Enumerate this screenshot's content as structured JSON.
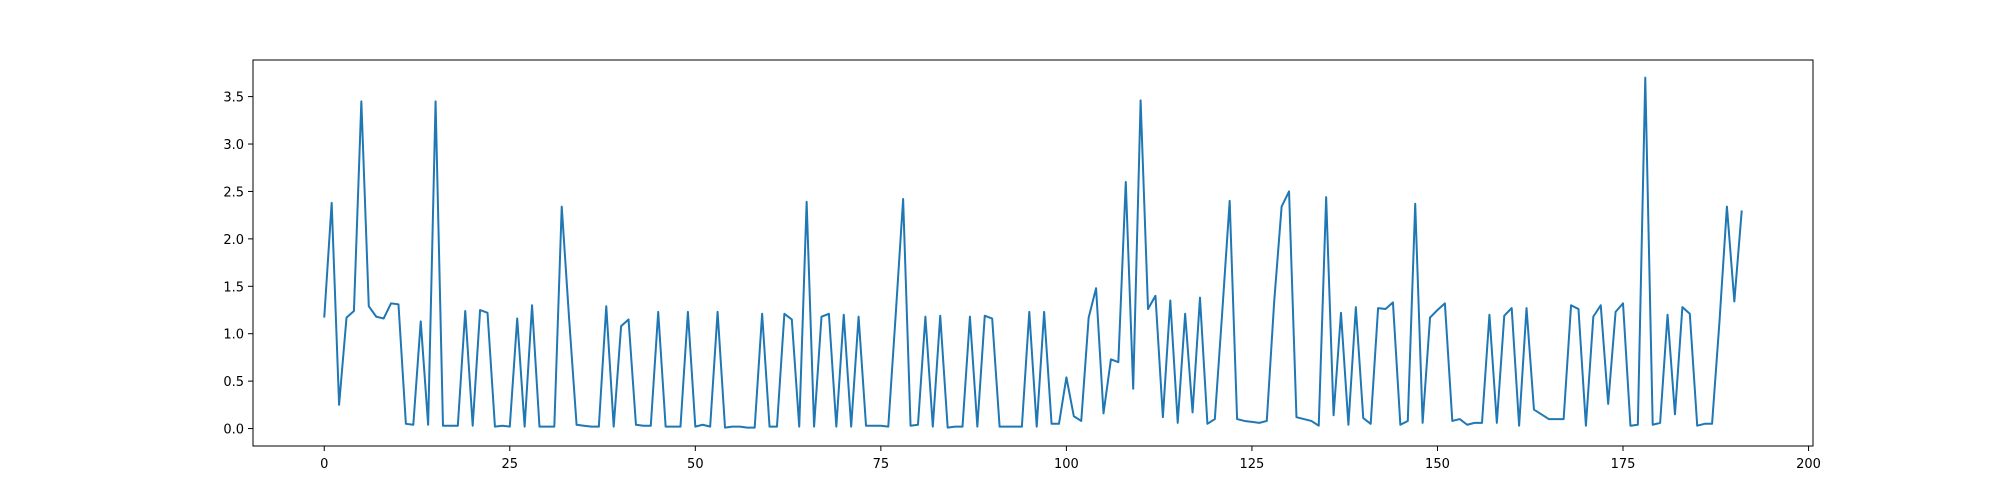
{
  "chart_data": {
    "type": "line",
    "title": "",
    "xlabel": "",
    "ylabel": "",
    "xlim": [
      -9.6,
      200.6
    ],
    "ylim": [
      -0.184,
      3.886
    ],
    "xticks": [
      0,
      25,
      50,
      75,
      100,
      125,
      150,
      175,
      200
    ],
    "yticks": [
      0.0,
      0.5,
      1.0,
      1.5,
      2.0,
      2.5,
      3.0,
      3.5
    ],
    "xtick_labels": [
      "0",
      "25",
      "50",
      "75",
      "100",
      "125",
      "150",
      "175",
      "200"
    ],
    "ytick_labels": [
      "0.0",
      "0.5",
      "1.0",
      "1.5",
      "2.0",
      "2.5",
      "3.0",
      "3.5"
    ],
    "grid": false,
    "legend": "none",
    "line_color": "#1f77b4",
    "series": [
      {
        "values": [
          1.17,
          2.38,
          0.25,
          1.17,
          1.24,
          3.45,
          1.29,
          1.18,
          1.16,
          1.32,
          1.31,
          0.05,
          0.04,
          1.13,
          0.04,
          3.45,
          0.03,
          0.03,
          0.03,
          1.24,
          0.03,
          1.25,
          1.22,
          0.02,
          0.03,
          0.02,
          1.16,
          0.02,
          1.3,
          0.02,
          0.02,
          0.02,
          2.34,
          1.15,
          0.04,
          0.03,
          0.02,
          0.02,
          1.29,
          0.02,
          1.08,
          1.15,
          0.04,
          0.03,
          0.03,
          1.23,
          0.02,
          0.02,
          0.02,
          1.23,
          0.02,
          0.04,
          0.02,
          1.23,
          0.01,
          0.02,
          0.02,
          0.01,
          0.01,
          1.21,
          0.02,
          0.02,
          1.21,
          1.15,
          0.02,
          2.39,
          0.02,
          1.18,
          1.21,
          0.02,
          1.2,
          0.02,
          1.18,
          0.03,
          0.03,
          0.03,
          0.02,
          1.2,
          2.42,
          0.03,
          0.04,
          1.18,
          0.02,
          1.19,
          0.01,
          0.02,
          0.02,
          1.18,
          0.02,
          1.19,
          1.16,
          0.02,
          0.02,
          0.02,
          0.02,
          1.23,
          0.02,
          1.23,
          0.05,
          0.05,
          0.54,
          0.13,
          0.08,
          1.17,
          1.48,
          0.16,
          0.73,
          0.7,
          2.6,
          0.42,
          3.46,
          1.26,
          1.4,
          0.12,
          1.35,
          0.06,
          1.21,
          0.17,
          1.38,
          0.05,
          0.1,
          1.23,
          2.4,
          0.1,
          0.08,
          0.07,
          0.06,
          0.08,
          1.34,
          2.34,
          2.5,
          0.12,
          0.1,
          0.08,
          0.03,
          2.44,
          0.14,
          1.22,
          0.04,
          1.28,
          0.11,
          0.05,
          1.27,
          1.26,
          1.33,
          0.04,
          0.08,
          2.37,
          0.06,
          1.17,
          1.25,
          1.32,
          0.08,
          0.1,
          0.04,
          0.06,
          0.06,
          1.2,
          0.06,
          1.19,
          1.27,
          0.03,
          1.27,
          0.2,
          0.15,
          0.1,
          0.1,
          0.1,
          1.3,
          1.26,
          0.03,
          1.18,
          1.3,
          0.26,
          1.23,
          1.32,
          0.03,
          0.04,
          3.7,
          0.04,
          0.06,
          1.2,
          0.15,
          1.28,
          1.21,
          0.03,
          0.05,
          0.05,
          1.13,
          2.34,
          1.34,
          2.3
        ]
      }
    ]
  }
}
